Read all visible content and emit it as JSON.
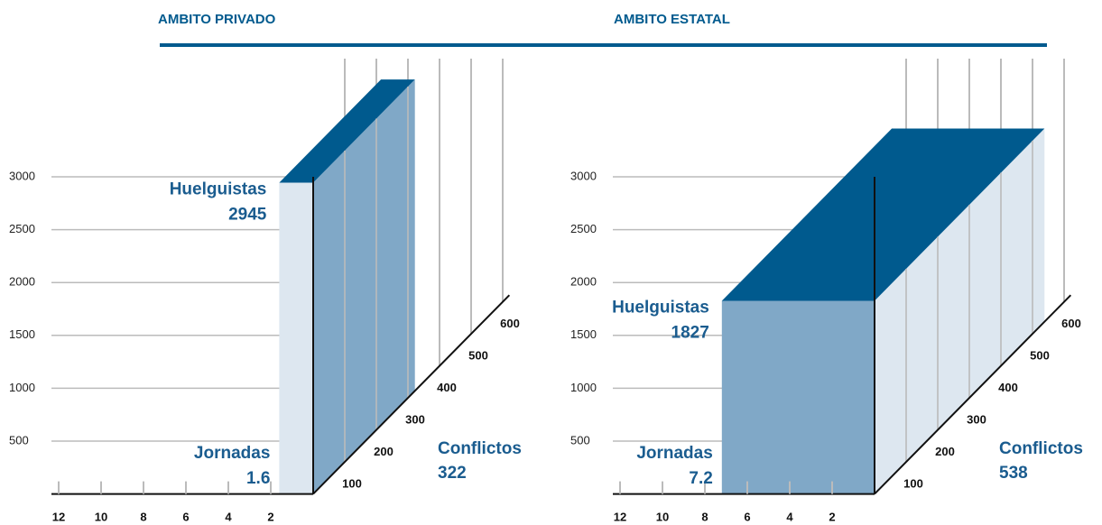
{
  "chart_data": [
    {
      "type": "box3d",
      "title": "AMBITO PRIVADO",
      "y_label": "Huelguistas",
      "huelguistas": 2945,
      "x_label": "Jornadas",
      "jornadas": 1.6,
      "z_label": "Conflictos",
      "conflictos": 322,
      "ylim": [
        0,
        3000
      ],
      "yticks": [
        500,
        1000,
        1500,
        2000,
        2500,
        3000
      ],
      "xlim": [
        0,
        12
      ],
      "xticks": [
        2,
        4,
        6,
        8,
        10,
        12
      ],
      "zlim": [
        0,
        600
      ],
      "zticks": [
        100,
        200,
        300,
        400,
        500,
        600
      ],
      "front_color": "#dde7f0",
      "side_color": "#80a8c7",
      "top_color": "#005a8e",
      "grid": true
    },
    {
      "type": "box3d",
      "title": "AMBITO ESTATAL",
      "y_label": "Huelguistas",
      "huelguistas": 1827,
      "x_label": "Jornadas",
      "jornadas": 7.2,
      "z_label": "Conflictos",
      "conflictos": 538,
      "ylim": [
        0,
        3000
      ],
      "yticks": [
        500,
        1000,
        1500,
        2000,
        2500,
        3000
      ],
      "xlim": [
        0,
        12
      ],
      "xticks": [
        2,
        4,
        6,
        8,
        10,
        12
      ],
      "zlim": [
        0,
        600
      ],
      "zticks": [
        100,
        200,
        300,
        400,
        500,
        600
      ],
      "front_color": "#80a8c7",
      "side_color": "#dde7f0",
      "top_color": "#005a8e",
      "grid": true
    }
  ]
}
